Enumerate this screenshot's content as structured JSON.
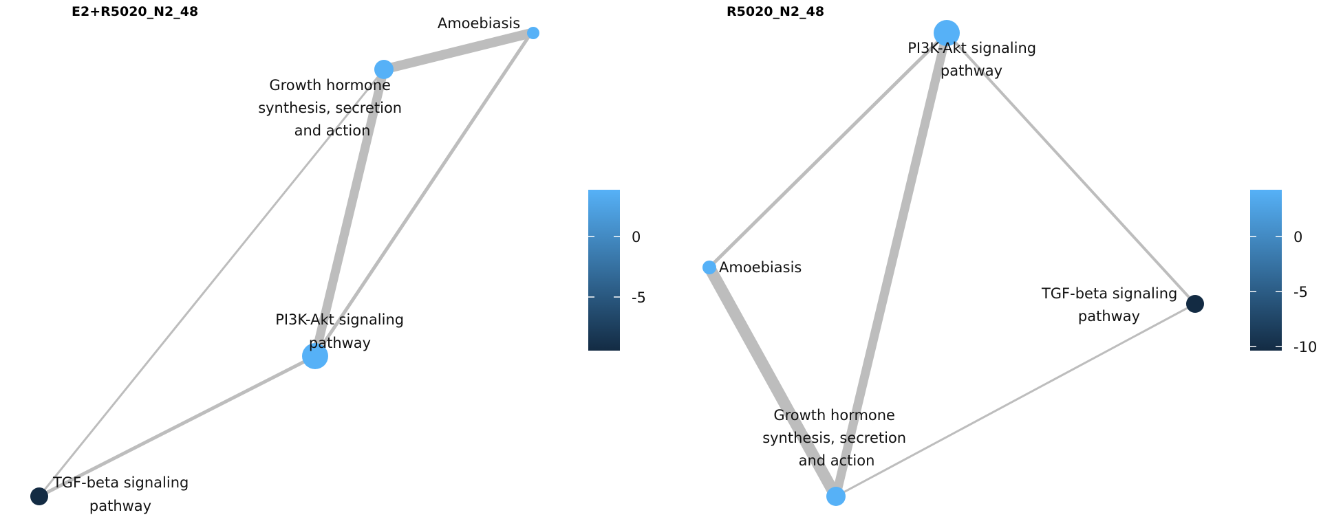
{
  "panels": [
    {
      "title": "E2+R5020_N2_48",
      "nodes": [
        {
          "id": "amoebiasis",
          "label_lines": [
            "Amoebiasis"
          ],
          "color": "#56b1f7"
        },
        {
          "id": "growth",
          "label_lines": [
            "Growth hormone",
            "synthesis, secretion",
            "and action"
          ],
          "color": "#56b1f7"
        },
        {
          "id": "pi3k",
          "label_lines": [
            "PI3K-Akt signaling",
            "pathway"
          ],
          "color": "#56b1f7"
        },
        {
          "id": "tgf",
          "label_lines": [
            "TGF-beta signaling",
            "pathway"
          ],
          "color": "#132b43"
        }
      ],
      "edges": [
        {
          "source": "amoebiasis",
          "target": "growth"
        },
        {
          "source": "amoebiasis",
          "target": "pi3k"
        },
        {
          "source": "growth",
          "target": "pi3k"
        },
        {
          "source": "growth",
          "target": "tgf"
        },
        {
          "source": "pi3k",
          "target": "tgf"
        }
      ],
      "legend": {
        "ticks": [
          "0",
          "-5"
        ],
        "color_high": "#56b1f7",
        "color_low": "#132b43"
      }
    },
    {
      "title": "R5020_N2_48",
      "nodes": [
        {
          "id": "pi3k",
          "label_lines": [
            "PI3K-Akt signaling",
            "pathway"
          ],
          "color": "#56b1f7"
        },
        {
          "id": "amoebiasis",
          "label_lines": [
            "Amoebiasis"
          ],
          "color": "#56b1f7"
        },
        {
          "id": "tgf",
          "label_lines": [
            "TGF-beta signaling",
            "pathway"
          ],
          "color": "#132b43"
        },
        {
          "id": "growth",
          "label_lines": [
            "Growth hormone",
            "synthesis, secretion",
            "and action"
          ],
          "color": "#56b1f7"
        }
      ],
      "edges": [
        {
          "source": "pi3k",
          "target": "amoebiasis"
        },
        {
          "source": "pi3k",
          "target": "growth"
        },
        {
          "source": "pi3k",
          "target": "tgf"
        },
        {
          "source": "amoebiasis",
          "target": "growth"
        },
        {
          "source": "tgf",
          "target": "growth"
        }
      ],
      "legend": {
        "ticks": [
          "0",
          "-5",
          "-10"
        ],
        "color_high": "#56b1f7",
        "color_low": "#132b43"
      }
    }
  ]
}
